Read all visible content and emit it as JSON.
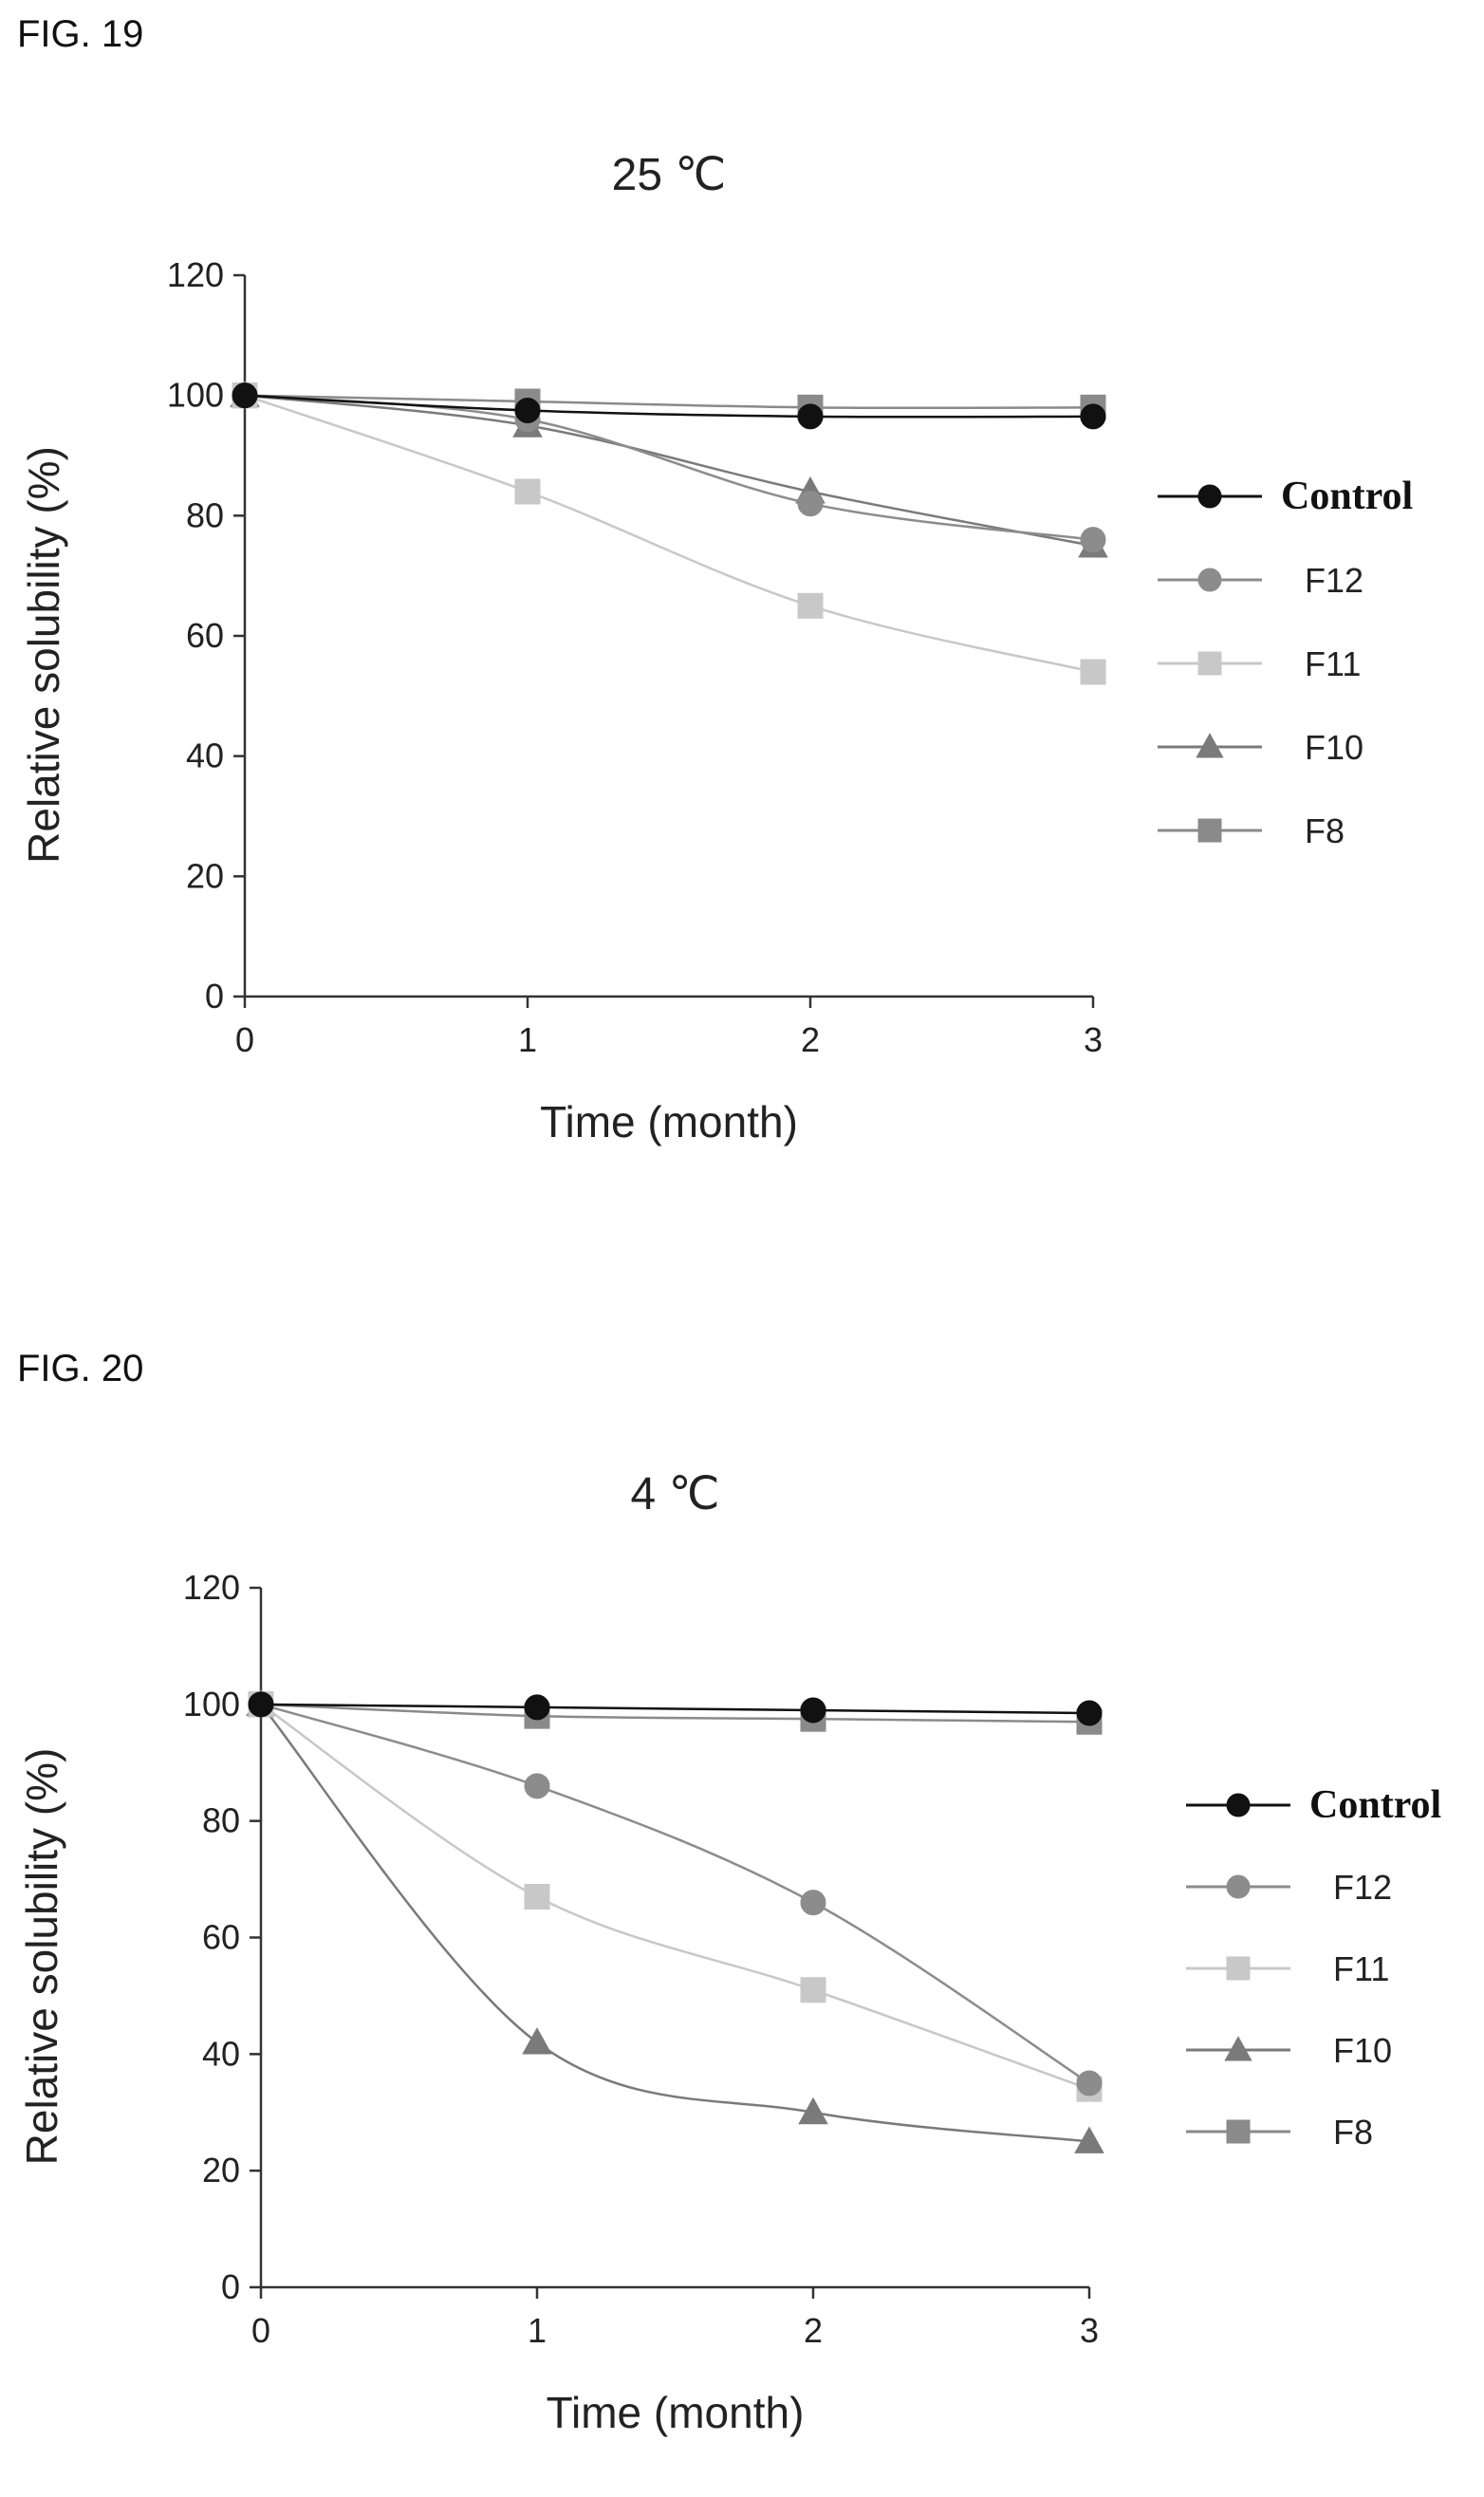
{
  "figures": [
    {
      "label": "FIG. 19",
      "chart_data": {
        "type": "line",
        "title": "25 ℃",
        "xlabel": "Time (month)",
        "ylabel": "Relative solubility (%)",
        "x": [
          0,
          1,
          2,
          3
        ],
        "xlim": [
          0,
          3
        ],
        "ylim": [
          0,
          120
        ],
        "xticks": [
          "0",
          "1",
          "2",
          "3"
        ],
        "yticks": [
          "0",
          "20",
          "40",
          "60",
          "80",
          "100",
          "120"
        ],
        "grid": false,
        "legend_position": "right",
        "series": [
          {
            "name": "Control",
            "marker": "circle",
            "color": "#111111",
            "values": [
              100,
              97.5,
              96.5,
              96.5
            ]
          },
          {
            "name": "F12",
            "marker": "circle",
            "color": "#8c8c8c",
            "values": [
              100,
              96,
              82,
              76
            ]
          },
          {
            "name": "F11",
            "marker": "square",
            "color": "#c8c8c8",
            "values": [
              100,
              84,
              65,
              54
            ]
          },
          {
            "name": "F10",
            "marker": "triangle",
            "color": "#7a7a7a",
            "values": [
              100,
              95,
              84,
              75
            ]
          },
          {
            "name": "F8",
            "marker": "square",
            "color": "#8a8a8a",
            "values": [
              100,
              99,
              98,
              98
            ]
          }
        ]
      }
    },
    {
      "label": "FIG. 20",
      "chart_data": {
        "type": "line",
        "title": "4 ℃",
        "xlabel": "Time (month)",
        "ylabel": "Relative solubility (%)",
        "x": [
          0,
          1,
          2,
          3
        ],
        "xlim": [
          0,
          3
        ],
        "ylim": [
          0,
          120
        ],
        "xticks": [
          "0",
          "1",
          "2",
          "3"
        ],
        "yticks": [
          "0",
          "20",
          "40",
          "60",
          "80",
          "100",
          "120"
        ],
        "grid": false,
        "legend_position": "right",
        "series": [
          {
            "name": "Control",
            "marker": "circle",
            "color": "#111111",
            "values": [
              100,
              99.5,
              99,
              98.5
            ]
          },
          {
            "name": "F12",
            "marker": "circle",
            "color": "#8c8c8c",
            "values": [
              100,
              86,
              66,
              35
            ]
          },
          {
            "name": "F11",
            "marker": "square",
            "color": "#c8c8c8",
            "values": [
              100,
              67,
              51,
              34
            ]
          },
          {
            "name": "F10",
            "marker": "triangle",
            "color": "#7a7a7a",
            "values": [
              100,
              42,
              30,
              25
            ]
          },
          {
            "name": "F8",
            "marker": "square",
            "color": "#8a8a8a",
            "values": [
              100,
              98,
              97.5,
              97
            ]
          }
        ]
      }
    }
  ]
}
